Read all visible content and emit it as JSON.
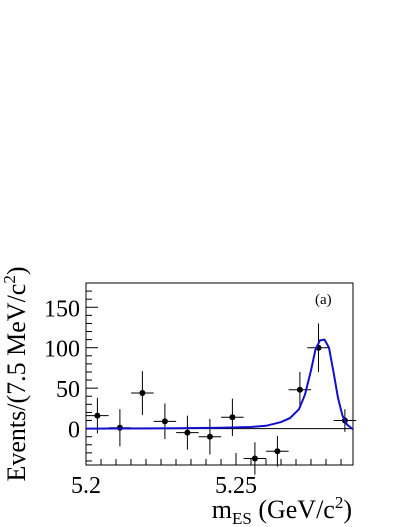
{
  "chart_data": {
    "type": "scatter",
    "panel_label": "(a)",
    "xlabel_main": "m",
    "xlabel_sub": "ES",
    "xlabel_unit": " (GeV/c",
    "xlabel_sup": "2",
    "xlabel_close": ")",
    "ylabel_text": "Events/(7.5 MeV/c",
    "ylabel_sup": "2",
    "ylabel_close": ")",
    "xlim": [
      5.2,
      5.289
    ],
    "ylim": [
      -45,
      180
    ],
    "x_ticks": [
      {
        "value": 5.2,
        "label": "5.2"
      },
      {
        "value": 5.25,
        "label": "5.25"
      }
    ],
    "y_ticks": [
      {
        "value": 0,
        "label": "0"
      },
      {
        "value": 50,
        "label": "50"
      },
      {
        "value": 100,
        "label": "100"
      },
      {
        "value": 150,
        "label": "150"
      }
    ],
    "data_points": [
      {
        "x": 5.2038,
        "y": 16,
        "yerr": 22,
        "xerr": 0.00375
      },
      {
        "x": 5.2113,
        "y": 1,
        "yerr": 23,
        "xerr": 0.00375
      },
      {
        "x": 5.2188,
        "y": 44,
        "yerr": 27,
        "xerr": 0.00375
      },
      {
        "x": 5.2263,
        "y": 9,
        "yerr": 22,
        "xerr": 0.00375
      },
      {
        "x": 5.2338,
        "y": -5,
        "yerr": 21,
        "xerr": 0.00375
      },
      {
        "x": 5.2413,
        "y": -10,
        "yerr": 22,
        "xerr": 0.00375
      },
      {
        "x": 5.2488,
        "y": 14,
        "yerr": 23,
        "xerr": 0.00375
      },
      {
        "x": 5.2563,
        "y": -37,
        "yerr": 20,
        "xerr": 0.00375
      },
      {
        "x": 5.2638,
        "y": -28,
        "yerr": 19,
        "xerr": 0.00375
      },
      {
        "x": 5.2713,
        "y": 48,
        "yerr": 22,
        "xerr": 0.00375
      },
      {
        "x": 5.2775,
        "y": 100,
        "yerr": 30,
        "xerr": 0.00375
      },
      {
        "x": 5.2863,
        "y": 10,
        "yerr": 14,
        "xerr": 0.00375
      }
    ],
    "fit_curve": {
      "color": "#1010cc",
      "points": [
        [
          5.2,
          0
        ],
        [
          5.23,
          0.4
        ],
        [
          5.245,
          1
        ],
        [
          5.255,
          2
        ],
        [
          5.26,
          3.5
        ],
        [
          5.265,
          8
        ],
        [
          5.268,
          13
        ],
        [
          5.271,
          24
        ],
        [
          5.273,
          42
        ],
        [
          5.275,
          72
        ],
        [
          5.2765,
          98
        ],
        [
          5.278,
          109
        ],
        [
          5.2795,
          110
        ],
        [
          5.281,
          100
        ],
        [
          5.2825,
          70
        ],
        [
          5.284,
          38
        ],
        [
          5.2855,
          16
        ],
        [
          5.287,
          5
        ],
        [
          5.289,
          -1
        ]
      ]
    },
    "grid": false,
    "zero_line": true
  }
}
